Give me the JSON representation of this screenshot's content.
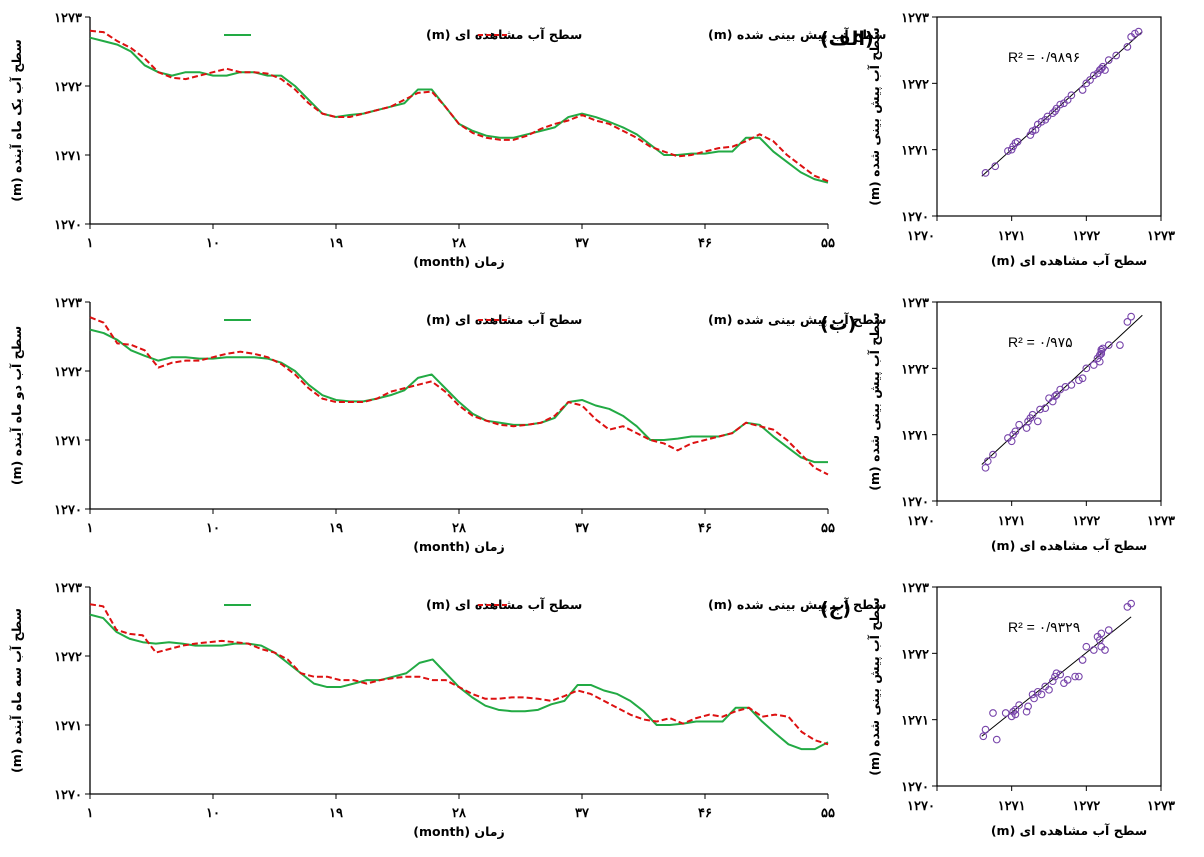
{
  "colors": {
    "observed": "#22aa44",
    "predicted": "#dd1111",
    "scatter": "#7744aa",
    "axis": "#000000"
  },
  "chart_data": [
    {
      "type": "line",
      "panel_label": "(الف)",
      "ylabel": "سطح آب یک ماه آینده (m)",
      "xlabel": "زمان (month)",
      "ylim": [
        1270,
        1273
      ],
      "xlim": [
        1,
        55
      ],
      "x_ticks": [
        1,
        10,
        19,
        28,
        37,
        46,
        55
      ],
      "x_tick_labels": [
        "۱",
        "۱۰",
        "۱۹",
        "۲۸",
        "۳۷",
        "۴۶",
        "۵۵"
      ],
      "y_ticks": [
        1270,
        1271,
        1272,
        1273
      ],
      "y_tick_labels": [
        "۱۲۷۰",
        "۱۲۷۱",
        "۱۲۷۲",
        "۱۲۷۳"
      ],
      "series": [
        {
          "name": "سطح آب مشاهده ای (m)",
          "style": "solid",
          "values": [
            1272.7,
            1272.65,
            1272.6,
            1272.5,
            1272.3,
            1272.2,
            1272.15,
            1272.2,
            1272.2,
            1272.15,
            1272.15,
            1272.2,
            1272.2,
            1272.15,
            1272.15,
            1272.0,
            1271.8,
            1271.6,
            1271.55,
            1271.58,
            1271.6,
            1271.65,
            1271.7,
            1271.75,
            1271.95,
            1271.95,
            1271.7,
            1271.45,
            1271.35,
            1271.28,
            1271.25,
            1271.25,
            1271.3,
            1271.35,
            1271.4,
            1271.55,
            1271.6,
            1271.55,
            1271.48,
            1271.4,
            1271.3,
            1271.15,
            1271.0,
            1271.0,
            1271.02,
            1271.02,
            1271.05,
            1271.05,
            1271.25,
            1271.25,
            1271.05,
            1270.9,
            1270.75,
            1270.65,
            1270.6
          ]
        },
        {
          "name": "سطح آب پیش بینی شده (m)",
          "style": "dashed",
          "values": [
            1272.8,
            1272.78,
            1272.65,
            1272.55,
            1272.4,
            1272.2,
            1272.12,
            1272.1,
            1272.15,
            1272.2,
            1272.25,
            1272.2,
            1272.2,
            1272.18,
            1272.1,
            1271.95,
            1271.75,
            1271.6,
            1271.55,
            1271.55,
            1271.6,
            1271.65,
            1271.7,
            1271.8,
            1271.9,
            1271.92,
            1271.7,
            1271.45,
            1271.32,
            1271.25,
            1271.22,
            1271.22,
            1271.28,
            1271.38,
            1271.45,
            1271.5,
            1271.58,
            1271.5,
            1271.45,
            1271.35,
            1271.25,
            1271.12,
            1271.05,
            1270.98,
            1271.0,
            1271.05,
            1271.1,
            1271.12,
            1271.2,
            1271.3,
            1271.2,
            1271.0,
            1270.85,
            1270.7,
            1270.62
          ]
        }
      ]
    },
    {
      "type": "scatter",
      "r2_label": "R² = ۰/۹۸۹۶",
      "xlabel": "سطح آب مشاهده ای (m)",
      "ylabel": "سطح آب پیش بینی شده (m)",
      "xlim": [
        1270,
        1273
      ],
      "ylim": [
        1270,
        1273
      ],
      "x_tick_labels": [
        "۱۲۷۰",
        "۱۲۷۱",
        "۱۲۷۲",
        "۱۲۷۳"
      ],
      "y_tick_labels": [
        "۱۲۷۰",
        "۱۲۷۱",
        "۱۲۷۲",
        "۱۲۷۳"
      ],
      "points": [
        [
          1270.65,
          1270.65
        ],
        [
          1270.78,
          1270.75
        ],
        [
          1270.95,
          1270.98
        ],
        [
          1271.0,
          1271.0
        ],
        [
          1271.02,
          1271.05
        ],
        [
          1271.05,
          1271.1
        ],
        [
          1271.08,
          1271.12
        ],
        [
          1271.25,
          1271.22
        ],
        [
          1271.28,
          1271.28
        ],
        [
          1271.32,
          1271.3
        ],
        [
          1271.35,
          1271.38
        ],
        [
          1271.4,
          1271.42
        ],
        [
          1271.45,
          1271.45
        ],
        [
          1271.48,
          1271.5
        ],
        [
          1271.55,
          1271.55
        ],
        [
          1271.58,
          1271.58
        ],
        [
          1271.6,
          1271.62
        ],
        [
          1271.65,
          1271.68
        ],
        [
          1271.7,
          1271.7
        ],
        [
          1271.75,
          1271.75
        ],
        [
          1271.8,
          1271.82
        ],
        [
          1271.95,
          1271.9
        ],
        [
          1272.0,
          1272.0
        ],
        [
          1272.05,
          1272.05
        ],
        [
          1272.1,
          1272.12
        ],
        [
          1272.15,
          1272.15
        ],
        [
          1272.18,
          1272.2
        ],
        [
          1272.2,
          1272.22
        ],
        [
          1272.22,
          1272.25
        ],
        [
          1272.25,
          1272.2
        ],
        [
          1272.3,
          1272.35
        ],
        [
          1272.4,
          1272.42
        ],
        [
          1272.55,
          1272.55
        ],
        [
          1272.6,
          1272.7
        ],
        [
          1272.7,
          1272.78
        ],
        [
          1272.65,
          1272.75
        ]
      ],
      "trendline": [
        [
          1270.6,
          1270.6
        ],
        [
          1272.75,
          1272.78
        ]
      ]
    },
    {
      "type": "line",
      "panel_label": "(ب)",
      "ylabel": "سطح آب دو ماه آینده (m)",
      "xlabel": "زمان (month)",
      "ylim": [
        1270,
        1273
      ],
      "xlim": [
        1,
        55
      ],
      "x_ticks": [
        1,
        10,
        19,
        28,
        37,
        46,
        55
      ],
      "x_tick_labels": [
        "۱",
        "۱۰",
        "۱۹",
        "۲۸",
        "۳۷",
        "۴۶",
        "۵۵"
      ],
      "y_ticks": [
        1270,
        1271,
        1272,
        1273
      ],
      "y_tick_labels": [
        "۱۲۷۰",
        "۱۲۷۱",
        "۱۲۷۲",
        "۱۲۷۳"
      ],
      "series": [
        {
          "name": "سطح آب مشاهده ای (m)",
          "style": "solid",
          "values": [
            1272.6,
            1272.55,
            1272.45,
            1272.3,
            1272.22,
            1272.15,
            1272.2,
            1272.2,
            1272.18,
            1272.18,
            1272.2,
            1272.2,
            1272.2,
            1272.18,
            1272.12,
            1272.0,
            1271.8,
            1271.65,
            1271.58,
            1271.56,
            1271.56,
            1271.6,
            1271.65,
            1271.72,
            1271.9,
            1271.95,
            1271.75,
            1271.55,
            1271.38,
            1271.28,
            1271.25,
            1271.22,
            1271.22,
            1271.25,
            1271.32,
            1271.55,
            1271.58,
            1271.5,
            1271.45,
            1271.35,
            1271.2,
            1271.0,
            1271.0,
            1271.02,
            1271.05,
            1271.05,
            1271.05,
            1271.1,
            1271.25,
            1271.22,
            1271.05,
            1270.9,
            1270.75,
            1270.68,
            1270.68
          ]
        },
        {
          "name": "سطح آب پیش بینی شده (m)",
          "style": "dashed",
          "values": [
            1272.78,
            1272.7,
            1272.4,
            1272.38,
            1272.3,
            1272.05,
            1272.12,
            1272.15,
            1272.15,
            1272.2,
            1272.25,
            1272.28,
            1272.25,
            1272.2,
            1272.1,
            1271.95,
            1271.75,
            1271.6,
            1271.55,
            1271.55,
            1271.55,
            1271.6,
            1271.7,
            1271.75,
            1271.8,
            1271.85,
            1271.7,
            1271.5,
            1271.35,
            1271.28,
            1271.22,
            1271.2,
            1271.22,
            1271.25,
            1271.35,
            1271.55,
            1271.5,
            1271.3,
            1271.15,
            1271.2,
            1271.1,
            1271.0,
            1270.95,
            1270.85,
            1270.95,
            1271.0,
            1271.05,
            1271.1,
            1271.25,
            1271.2,
            1271.15,
            1271.0,
            1270.8,
            1270.6,
            1270.5
          ]
        }
      ]
    },
    {
      "type": "scatter",
      "r2_label": "R² = ۰/۹۷۵",
      "xlabel": "سطح آب مشاهده ای (m)",
      "ylabel": "سطح آب پیش بینی شده (m)",
      "xlim": [
        1270,
        1273
      ],
      "ylim": [
        1270,
        1273
      ],
      "x_tick_labels": [
        "۱۲۷۰",
        "۱۲۷۱",
        "۱۲۷۲",
        "۱۲۷۳"
      ],
      "y_tick_labels": [
        "۱۲۷۰",
        "۱۲۷۱",
        "۱۲۷۲",
        "۱۲۷۳"
      ],
      "points": [
        [
          1270.65,
          1270.5
        ],
        [
          1270.68,
          1270.6
        ],
        [
          1270.75,
          1270.7
        ],
        [
          1270.95,
          1270.95
        ],
        [
          1271.0,
          1270.9
        ],
        [
          1271.02,
          1271.0
        ],
        [
          1271.05,
          1271.05
        ],
        [
          1271.1,
          1271.15
        ],
        [
          1271.2,
          1271.1
        ],
        [
          1271.22,
          1271.2
        ],
        [
          1271.25,
          1271.25
        ],
        [
          1271.28,
          1271.3
        ],
        [
          1271.35,
          1271.2
        ],
        [
          1271.38,
          1271.38
        ],
        [
          1271.45,
          1271.4
        ],
        [
          1271.5,
          1271.55
        ],
        [
          1271.55,
          1271.5
        ],
        [
          1271.58,
          1271.58
        ],
        [
          1271.6,
          1271.6
        ],
        [
          1271.65,
          1271.68
        ],
        [
          1271.72,
          1271.72
        ],
        [
          1271.8,
          1271.75
        ],
        [
          1271.9,
          1271.82
        ],
        [
          1271.95,
          1271.85
        ],
        [
          1272.0,
          1272.0
        ],
        [
          1272.1,
          1272.05
        ],
        [
          1272.15,
          1272.15
        ],
        [
          1272.18,
          1272.2
        ],
        [
          1272.2,
          1272.25
        ],
        [
          1272.22,
          1272.3
        ],
        [
          1272.2,
          1272.28
        ],
        [
          1272.2,
          1272.22
        ],
        [
          1272.18,
          1272.1
        ],
        [
          1272.3,
          1272.35
        ],
        [
          1272.45,
          1272.35
        ],
        [
          1272.55,
          1272.7
        ],
        [
          1272.6,
          1272.78
        ]
      ],
      "trendline": [
        [
          1270.6,
          1270.55
        ],
        [
          1272.75,
          1272.8
        ]
      ]
    },
    {
      "type": "line",
      "panel_label": "(ج)",
      "ylabel": "سطح آب سه ماه آینده (m)",
      "xlabel": "زمان (month)",
      "ylim": [
        1270,
        1273
      ],
      "xlim": [
        1,
        55
      ],
      "x_ticks": [
        1,
        10,
        19,
        28,
        37,
        46,
        55
      ],
      "x_tick_labels": [
        "۱",
        "۱۰",
        "۱۹",
        "۲۸",
        "۳۷",
        "۴۶",
        "۵۵"
      ],
      "y_ticks": [
        1270,
        1271,
        1272,
        1273
      ],
      "y_tick_labels": [
        "۱۲۷۰",
        "۱۲۷۱",
        "۱۲۷۲",
        "۱۲۷۳"
      ],
      "series": [
        {
          "name": "سطح آب مشاهده ای (m)",
          "style": "solid",
          "values": [
            1272.6,
            1272.55,
            1272.35,
            1272.25,
            1272.2,
            1272.18,
            1272.2,
            1272.18,
            1272.15,
            1272.15,
            1272.15,
            1272.18,
            1272.18,
            1272.15,
            1272.05,
            1271.9,
            1271.75,
            1271.6,
            1271.55,
            1271.55,
            1271.6,
            1271.65,
            1271.65,
            1271.7,
            1271.75,
            1271.9,
            1271.95,
            1271.75,
            1271.55,
            1271.4,
            1271.28,
            1271.22,
            1271.2,
            1271.2,
            1271.22,
            1271.3,
            1271.35,
            1271.58,
            1271.58,
            1271.5,
            1271.45,
            1271.35,
            1271.2,
            1271.0,
            1271.0,
            1271.02,
            1271.05,
            1271.05,
            1271.05,
            1271.25,
            1271.25,
            1271.05,
            1270.88,
            1270.72,
            1270.65,
            1270.65,
            1270.75
          ]
        },
        {
          "name": "سطح آب پیش بینی شده (m)",
          "style": "dashed",
          "values": [
            1272.75,
            1272.72,
            1272.38,
            1272.32,
            1272.3,
            1272.05,
            1272.1,
            1272.15,
            1272.18,
            1272.2,
            1272.22,
            1272.2,
            1272.18,
            1272.1,
            1272.05,
            1271.95,
            1271.75,
            1271.7,
            1271.7,
            1271.65,
            1271.65,
            1271.6,
            1271.65,
            1271.68,
            1271.7,
            1271.7,
            1271.65,
            1271.65,
            1271.55,
            1271.45,
            1271.38,
            1271.38,
            1271.4,
            1271.4,
            1271.38,
            1271.35,
            1271.42,
            1271.5,
            1271.45,
            1271.35,
            1271.25,
            1271.15,
            1271.08,
            1271.05,
            1271.1,
            1271.02,
            1271.1,
            1271.15,
            1271.12,
            1271.2,
            1271.25,
            1271.12,
            1271.15,
            1271.12,
            1270.9,
            1270.78,
            1270.72
          ]
        }
      ]
    },
    {
      "type": "scatter",
      "r2_label": "R² = ۰/۹۳۲۹",
      "xlabel": "سطح آب مشاهده ای (m)",
      "ylabel": "سطح آب پیش بینی شده (m)",
      "xlim": [
        1270,
        1273
      ],
      "ylim": [
        1270,
        1273
      ],
      "x_tick_labels": [
        "۱۲۷۰",
        "۱۲۷۱",
        "۱۲۷۲",
        "۱۲۷۳"
      ],
      "y_tick_labels": [
        "۱۲۷۰",
        "۱۲۷۱",
        "۱۲۷۲",
        "۱۲۷۳"
      ],
      "points": [
        [
          1270.62,
          1270.75
        ],
        [
          1270.65,
          1270.85
        ],
        [
          1270.75,
          1271.1
        ],
        [
          1270.8,
          1270.7
        ],
        [
          1270.92,
          1271.1
        ],
        [
          1271.0,
          1271.05
        ],
        [
          1271.02,
          1271.12
        ],
        [
          1271.05,
          1271.08
        ],
        [
          1271.05,
          1271.15
        ],
        [
          1271.1,
          1271.22
        ],
        [
          1271.2,
          1271.12
        ],
        [
          1271.22,
          1271.2
        ],
        [
          1271.28,
          1271.38
        ],
        [
          1271.3,
          1271.32
        ],
        [
          1271.35,
          1271.42
        ],
        [
          1271.4,
          1271.38
        ],
        [
          1271.45,
          1271.5
        ],
        [
          1271.5,
          1271.45
        ],
        [
          1271.55,
          1271.58
        ],
        [
          1271.58,
          1271.65
        ],
        [
          1271.6,
          1271.7
        ],
        [
          1271.65,
          1271.68
        ],
        [
          1271.7,
          1271.55
        ],
        [
          1271.75,
          1271.6
        ],
        [
          1271.85,
          1271.65
        ],
        [
          1271.9,
          1271.65
        ],
        [
          1271.95,
          1271.9
        ],
        [
          1272.0,
          1272.1
        ],
        [
          1272.1,
          1272.05
        ],
        [
          1272.15,
          1272.25
        ],
        [
          1272.18,
          1272.2
        ],
        [
          1272.2,
          1272.1
        ],
        [
          1272.2,
          1272.3
        ],
        [
          1272.25,
          1272.05
        ],
        [
          1272.3,
          1272.35
        ],
        [
          1272.55,
          1272.7
        ],
        [
          1272.6,
          1272.75
        ]
      ],
      "trendline": [
        [
          1270.6,
          1270.75
        ],
        [
          1272.6,
          1272.55
        ]
      ]
    }
  ]
}
